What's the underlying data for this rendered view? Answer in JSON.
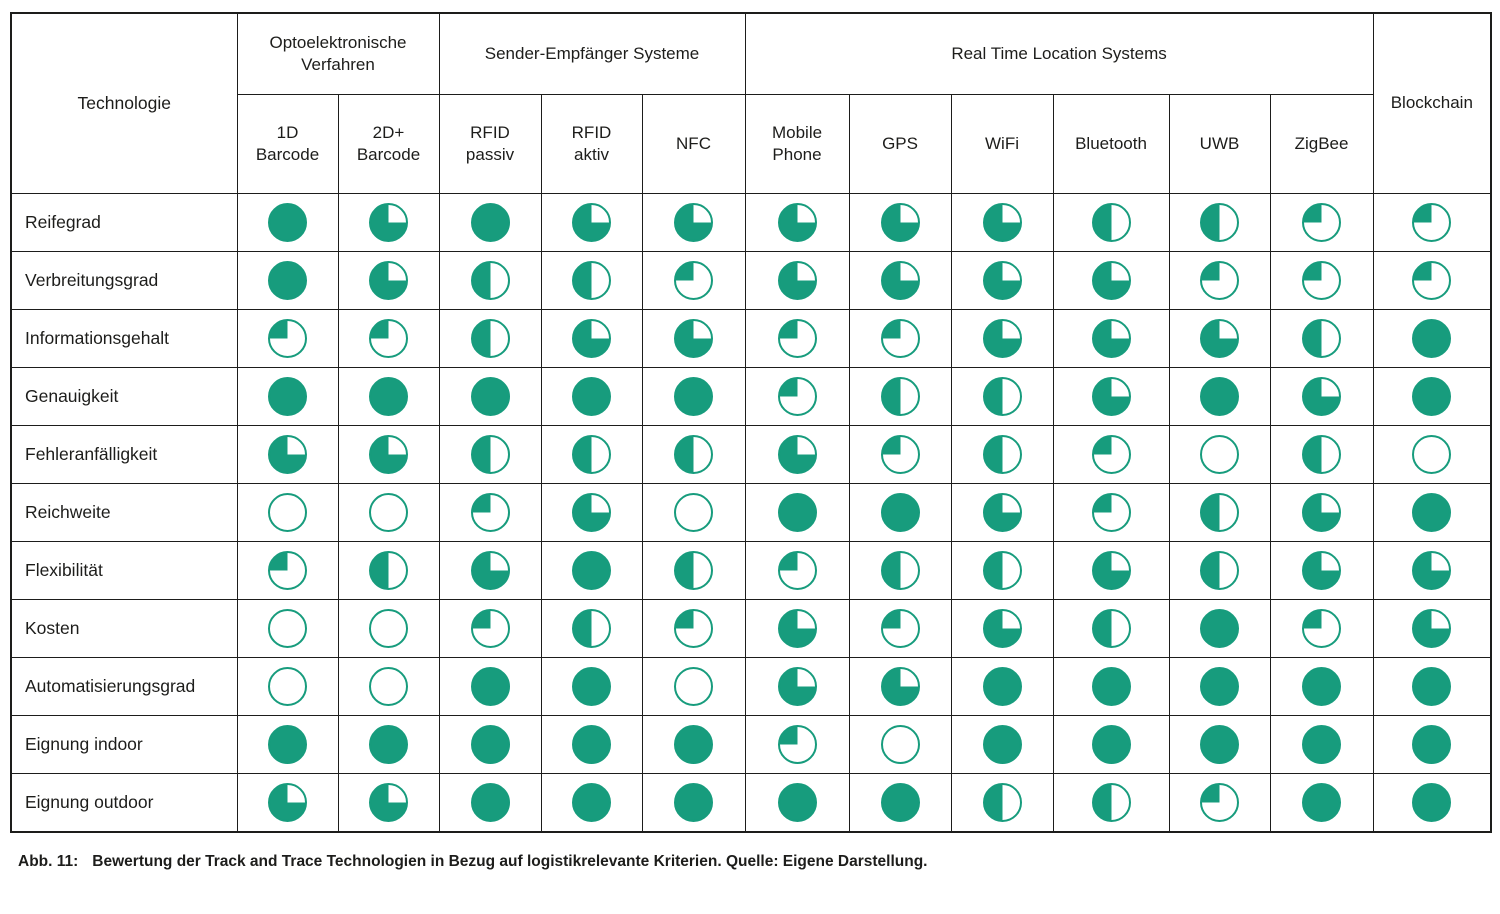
{
  "colors": {
    "green": "#179C7D",
    "line": "#1D1D1B",
    "text": "#1D1D1B",
    "background": "#FFFFFF"
  },
  "caption": {
    "label": "Abb. 11:",
    "text": "Bewertung der Track and Trace Technologien in Bezug auf logistikrelevante Kriterien. Quelle: Eigene Darstellung."
  },
  "chart_data": {
    "type": "table",
    "title": "Bewertung der Track and Trace Technologien in Bezug auf logistikrelevante Kriterien",
    "corner_label": "Technologie",
    "groups": [
      {
        "label": "Optoelektronische Verfahren",
        "span": 2
      },
      {
        "label": "Sender-Empfänger Systeme",
        "span": 3
      },
      {
        "label": "Real Time Location Systems",
        "span": 6
      }
    ],
    "columns": [
      "1D Barcode",
      "2D+ Barcode",
      "RFID passiv",
      "RFID aktiv",
      "NFC",
      "Mobile Phone",
      "GPS",
      "WiFi",
      "Bluetooth",
      "UWB",
      "ZigBee",
      "Blockchain"
    ],
    "rows": [
      "Reifegrad",
      "Verbreitungsgrad",
      "Informationsgehalt",
      "Genauigkeit",
      "Fehleranfälligkeit",
      "Reichweite",
      "Flexibilität",
      "Kosten",
      "Automatisierungsgrad",
      "Eignung indoor",
      "Eignung outdoor"
    ],
    "value_encoding": "harvey-ball fill fraction: 0 = empty circle, 0.25, 0.5, 0.75, 1 = full; fill drawn counterclockwise starting at 12 o'clock",
    "values": [
      [
        1,
        0.75,
        1,
        0.75,
        0.75,
        0.75,
        0.75,
        0.75,
        0.5,
        0.5,
        0.25,
        0.25
      ],
      [
        1,
        0.75,
        0.5,
        0.5,
        0.25,
        0.75,
        0.75,
        0.75,
        0.75,
        0.25,
        0.25,
        0.25
      ],
      [
        0.25,
        0.25,
        0.5,
        0.75,
        0.75,
        0.25,
        0.25,
        0.75,
        0.75,
        0.75,
        0.5,
        1
      ],
      [
        1,
        1,
        1,
        1,
        1,
        0.25,
        0.5,
        0.5,
        0.75,
        1,
        0.75,
        1
      ],
      [
        0.75,
        0.75,
        0.5,
        0.5,
        0.5,
        0.75,
        0.25,
        0.5,
        0.25,
        0,
        0.5,
        0
      ],
      [
        0,
        0,
        0.25,
        0.75,
        0,
        1,
        1,
        0.75,
        0.25,
        0.5,
        0.75,
        1
      ],
      [
        0.25,
        0.5,
        0.75,
        1,
        0.5,
        0.25,
        0.5,
        0.5,
        0.75,
        0.5,
        0.75,
        0.75
      ],
      [
        0,
        0,
        0.25,
        0.5,
        0.25,
        0.75,
        0.25,
        0.75,
        0.5,
        1,
        0.25,
        0.75
      ],
      [
        0,
        0,
        1,
        1,
        0,
        0.75,
        0.75,
        1,
        1,
        1,
        1,
        1
      ],
      [
        1,
        1,
        1,
        1,
        1,
        0.25,
        0,
        1,
        1,
        1,
        1,
        1
      ],
      [
        0.75,
        0.75,
        1,
        1,
        1,
        1,
        1,
        0.5,
        0.5,
        0.25,
        1,
        1
      ]
    ]
  }
}
